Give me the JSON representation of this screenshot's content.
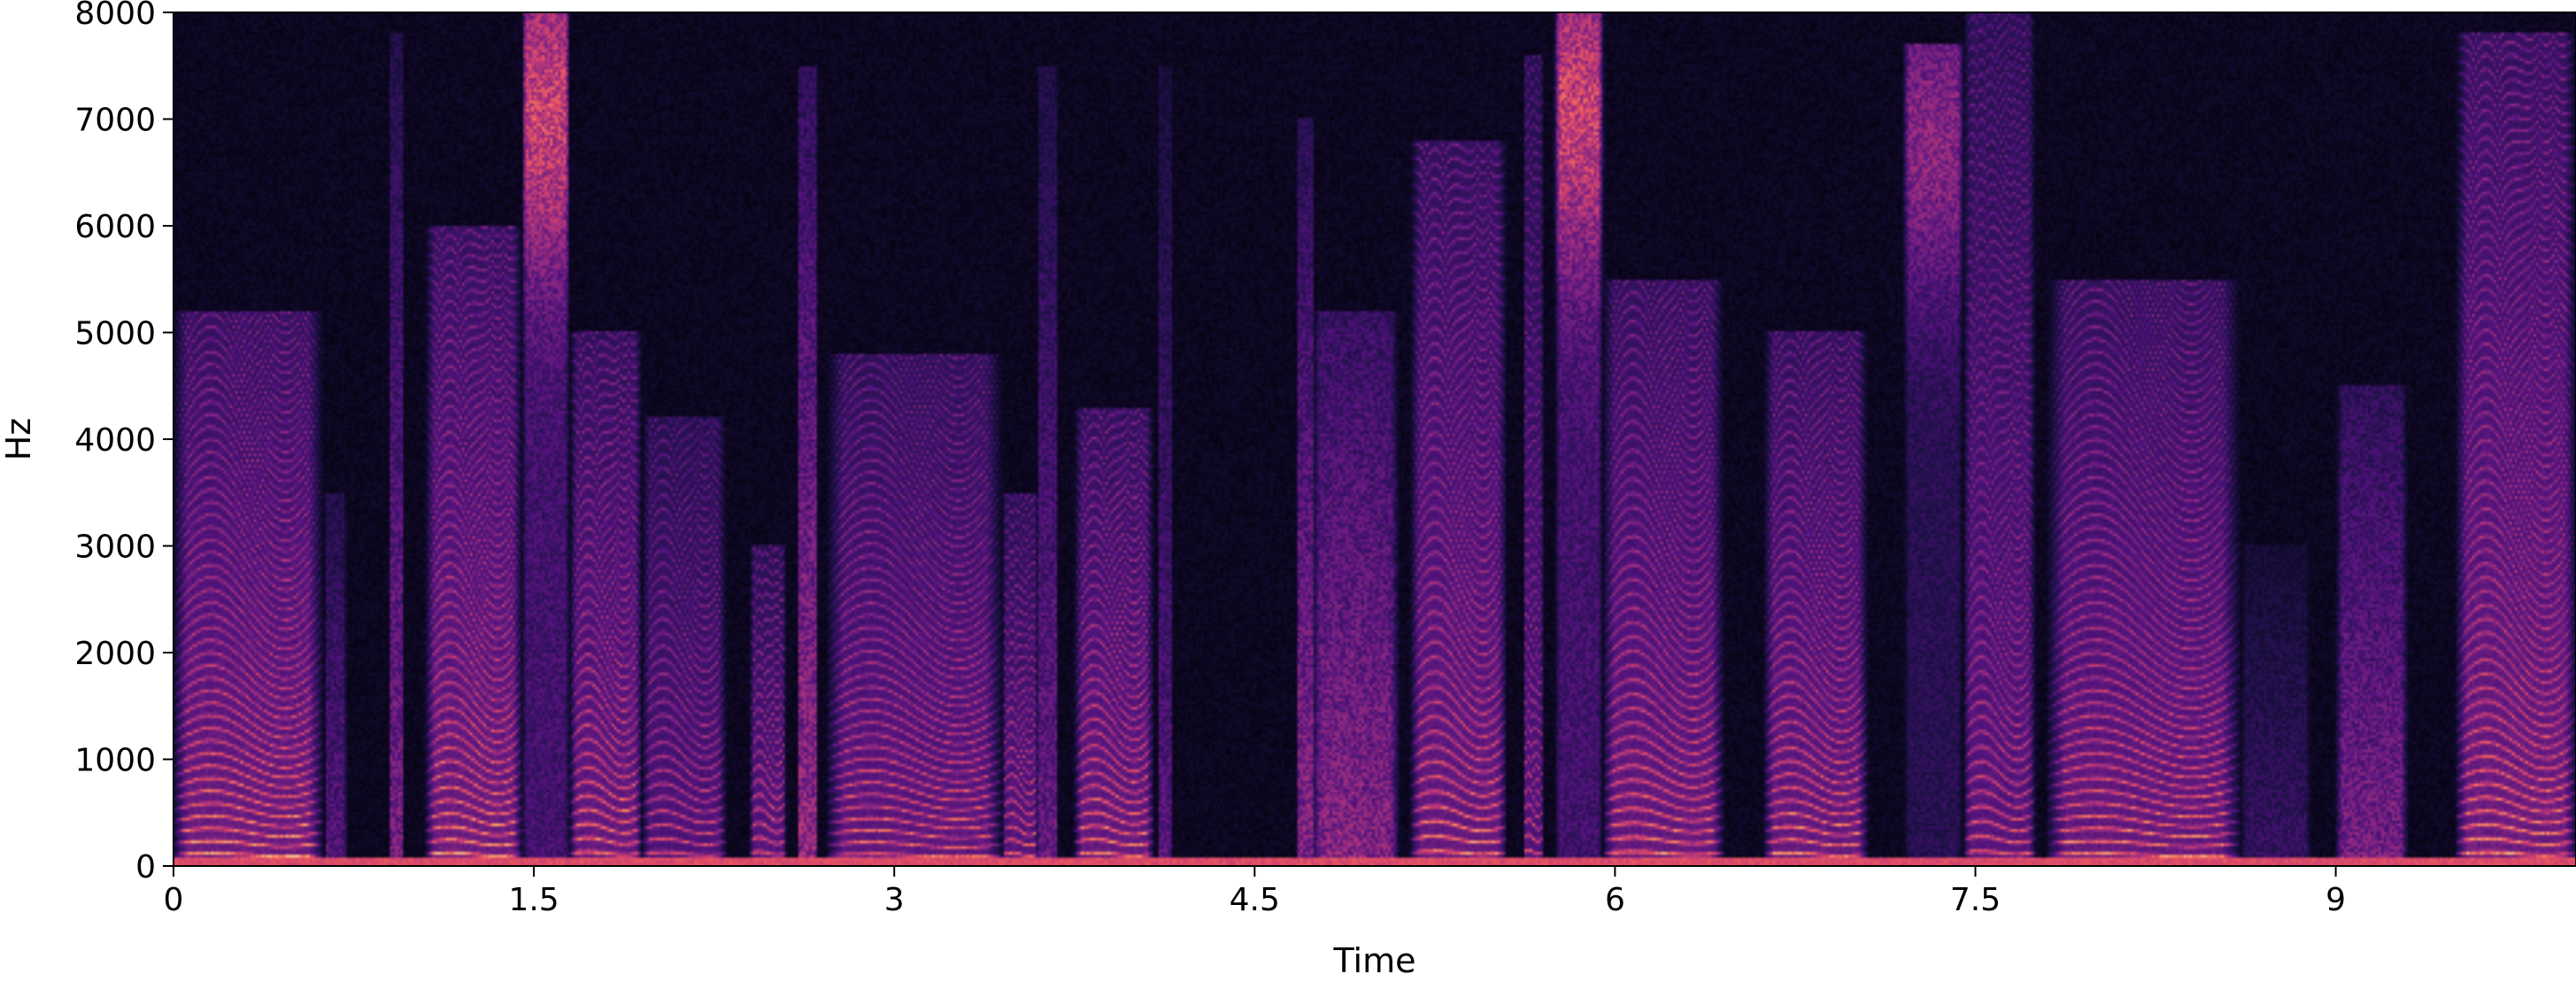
{
  "chart_data": {
    "type": "heatmap",
    "title": "",
    "xlabel": "Time",
    "ylabel": "Hz",
    "xlim": [
      0,
      10
    ],
    "ylim": [
      0,
      8000
    ],
    "x_ticks": [
      {
        "value": 0,
        "label": "0"
      },
      {
        "value": 1.5,
        "label": "1.5"
      },
      {
        "value": 3,
        "label": "3"
      },
      {
        "value": 4.5,
        "label": "4.5"
      },
      {
        "value": 6,
        "label": "6"
      },
      {
        "value": 7.5,
        "label": "7.5"
      },
      {
        "value": 9,
        "label": "9"
      }
    ],
    "y_ticks": [
      {
        "value": 0,
        "label": "0"
      },
      {
        "value": 1000,
        "label": "1000"
      },
      {
        "value": 2000,
        "label": "2000"
      },
      {
        "value": 3000,
        "label": "3000"
      },
      {
        "value": 4000,
        "label": "4000"
      },
      {
        "value": 5000,
        "label": "5000"
      },
      {
        "value": 6000,
        "label": "6000"
      },
      {
        "value": 7000,
        "label": "7000"
      },
      {
        "value": 8000,
        "label": "8000"
      }
    ],
    "colormap": "magma",
    "colormap_stops": [
      "#000004",
      "#1c1044",
      "#4f127b",
      "#812581",
      "#b5367a",
      "#e55064",
      "#fb8761",
      "#fec287",
      "#fcfdbf"
    ],
    "grid": false,
    "legend": "none",
    "segments": [
      {
        "start": 0.0,
        "end": 0.62,
        "f0": 105,
        "level": 0.95,
        "top": 5200,
        "kind": "voiced"
      },
      {
        "start": 0.63,
        "end": 0.72,
        "f0": 0,
        "level": 0.35,
        "top": 3500,
        "kind": "noise"
      },
      {
        "start": 0.9,
        "end": 0.95,
        "f0": 0,
        "level": 0.45,
        "top": 7800,
        "kind": "burst"
      },
      {
        "start": 1.05,
        "end": 1.45,
        "f0": 110,
        "level": 0.95,
        "top": 6000,
        "kind": "voiced"
      },
      {
        "start": 1.45,
        "end": 1.65,
        "f0": 0,
        "level": 0.85,
        "top": 8000,
        "kind": "fricative"
      },
      {
        "start": 1.65,
        "end": 1.95,
        "f0": 118,
        "level": 0.9,
        "top": 5000,
        "kind": "voiced"
      },
      {
        "start": 1.95,
        "end": 2.3,
        "f0": 115,
        "level": 0.75,
        "top": 4200,
        "kind": "voiced"
      },
      {
        "start": 2.4,
        "end": 2.55,
        "f0": 120,
        "level": 0.8,
        "top": 3000,
        "kind": "voiced"
      },
      {
        "start": 2.6,
        "end": 2.68,
        "f0": 0,
        "level": 0.55,
        "top": 7500,
        "kind": "burst"
      },
      {
        "start": 2.72,
        "end": 3.45,
        "f0": 100,
        "level": 0.85,
        "top": 4800,
        "kind": "voiced"
      },
      {
        "start": 3.45,
        "end": 3.6,
        "f0": 110,
        "level": 0.8,
        "top": 3500,
        "kind": "voiced"
      },
      {
        "start": 3.6,
        "end": 3.68,
        "f0": 0,
        "level": 0.4,
        "top": 7500,
        "kind": "burst"
      },
      {
        "start": 3.75,
        "end": 4.08,
        "f0": 112,
        "level": 0.9,
        "top": 4300,
        "kind": "voiced"
      },
      {
        "start": 4.1,
        "end": 4.15,
        "f0": 0,
        "level": 0.35,
        "top": 7500,
        "kind": "burst"
      },
      {
        "start": 4.68,
        "end": 4.74,
        "f0": 0,
        "level": 0.5,
        "top": 7000,
        "kind": "burst"
      },
      {
        "start": 4.74,
        "end": 5.1,
        "f0": 0,
        "level": 0.5,
        "top": 5200,
        "kind": "noise"
      },
      {
        "start": 5.15,
        "end": 5.55,
        "f0": 125,
        "level": 0.9,
        "top": 6800,
        "kind": "voiced"
      },
      {
        "start": 5.62,
        "end": 5.7,
        "f0": 130,
        "level": 0.75,
        "top": 7600,
        "kind": "voiced"
      },
      {
        "start": 5.75,
        "end": 5.95,
        "f0": 0,
        "level": 0.85,
        "top": 8000,
        "kind": "fricative"
      },
      {
        "start": 5.95,
        "end": 6.45,
        "f0": 120,
        "level": 0.9,
        "top": 5500,
        "kind": "voiced"
      },
      {
        "start": 6.62,
        "end": 7.05,
        "f0": 110,
        "level": 0.9,
        "top": 5000,
        "kind": "voiced"
      },
      {
        "start": 7.2,
        "end": 7.45,
        "f0": 0,
        "level": 0.6,
        "top": 7700,
        "kind": "fricative"
      },
      {
        "start": 7.45,
        "end": 7.75,
        "f0": 125,
        "level": 0.8,
        "top": 8000,
        "kind": "voiced"
      },
      {
        "start": 7.8,
        "end": 8.6,
        "f0": 105,
        "level": 0.9,
        "top": 5500,
        "kind": "voiced"
      },
      {
        "start": 8.6,
        "end": 8.9,
        "f0": 0,
        "level": 0.25,
        "top": 3000,
        "kind": "noise"
      },
      {
        "start": 9.0,
        "end": 9.3,
        "f0": 0,
        "level": 0.45,
        "top": 4500,
        "kind": "noise"
      },
      {
        "start": 9.5,
        "end": 10.0,
        "f0": 115,
        "level": 0.95,
        "top": 7800,
        "kind": "voiced"
      }
    ]
  }
}
